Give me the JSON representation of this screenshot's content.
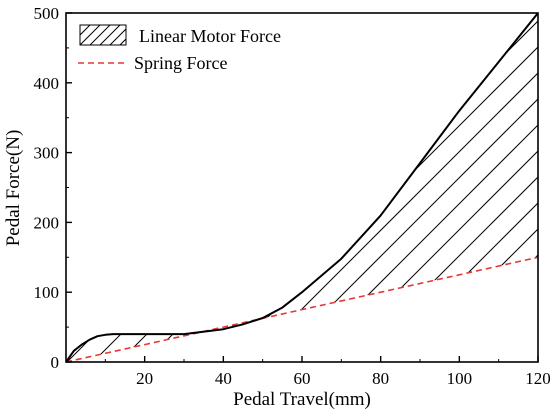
{
  "chart_data": {
    "type": "area",
    "xlabel": "Pedal Travel(mm)",
    "ylabel": "Pedal Force(N)",
    "xlim": [
      0,
      120
    ],
    "ylim": [
      0,
      500
    ],
    "xticks": [
      "20",
      "40",
      "60",
      "80",
      "100",
      "120"
    ],
    "yticks": [
      "0",
      "100",
      "200",
      "300",
      "400",
      "500"
    ],
    "grid": false,
    "legend_position": "top-left",
    "series": [
      {
        "name": "Linear Motor Force",
        "style": "solid, hatched fill down to Spring Force",
        "color": "#000000",
        "x": [
          0,
          1,
          2,
          4,
          6,
          8,
          10,
          12,
          20,
          30,
          40,
          45,
          50,
          55,
          60,
          70,
          80,
          90,
          100,
          110,
          120
        ],
        "y": [
          0,
          8,
          16,
          25,
          32,
          37,
          39,
          40,
          40,
          40,
          47,
          54,
          63,
          78,
          100,
          148,
          210,
          285,
          360,
          430,
          500
        ]
      },
      {
        "name": "Spring Force",
        "style": "dashed",
        "color": "#e53935",
        "x": [
          0,
          20,
          40,
          60,
          80,
          100,
          120
        ],
        "y": [
          0,
          25,
          50,
          75,
          100,
          125,
          150
        ]
      }
    ]
  }
}
